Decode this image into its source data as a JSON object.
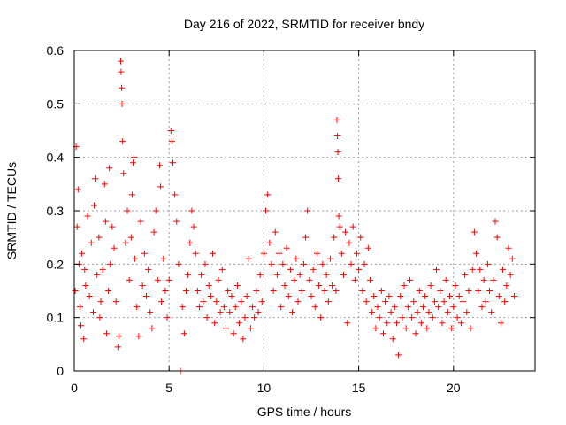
{
  "chart_data": {
    "type": "scatter",
    "title": "Day 216 of 2022, SRMTID for receiver bndy",
    "xlabel": "GPS time / hours",
    "ylabel": "SRMTID / TECUs",
    "xlim": [
      0,
      24.3
    ],
    "ylim": [
      0,
      0.6
    ],
    "x_ticks": [
      0,
      5,
      10,
      15,
      20
    ],
    "x_tick_labels": [
      "0",
      "5",
      "10",
      "15",
      "20"
    ],
    "y_ticks": [
      0,
      0.1,
      0.2,
      0.3,
      0.4,
      0.5,
      0.6
    ],
    "y_tick_labels": [
      "0",
      "0.1",
      "0.2",
      "0.3",
      "0.4",
      "0.5",
      "0.6"
    ],
    "grid": true,
    "marker": "plus",
    "color": "#ff0000",
    "series": [
      {
        "name": "SRMTID",
        "points": [
          [
            0.05,
            0.15
          ],
          [
            0.1,
            0.42
          ],
          [
            0.15,
            0.27
          ],
          [
            0.2,
            0.34
          ],
          [
            0.25,
            0.2
          ],
          [
            0.3,
            0.12
          ],
          [
            0.35,
            0.085
          ],
          [
            0.4,
            0.22
          ],
          [
            0.5,
            0.06
          ],
          [
            0.55,
            0.19
          ],
          [
            0.6,
            0.16
          ],
          [
            0.7,
            0.29
          ],
          [
            0.8,
            0.14
          ],
          [
            0.9,
            0.24
          ],
          [
            1.0,
            0.11
          ],
          [
            1.05,
            0.31
          ],
          [
            1.1,
            0.36
          ],
          [
            1.2,
            0.18
          ],
          [
            1.3,
            0.25
          ],
          [
            1.35,
            0.1
          ],
          [
            1.4,
            0.13
          ],
          [
            1.5,
            0.19
          ],
          [
            1.6,
            0.35
          ],
          [
            1.65,
            0.28
          ],
          [
            1.7,
            0.07
          ],
          [
            1.8,
            0.15
          ],
          [
            1.85,
            0.38
          ],
          [
            1.9,
            0.2
          ],
          [
            2.0,
            0.27
          ],
          [
            2.1,
            0.23
          ],
          [
            2.2,
            0.13
          ],
          [
            2.3,
            0.045
          ],
          [
            2.35,
            0.065
          ],
          [
            2.45,
            0.58
          ],
          [
            2.47,
            0.56
          ],
          [
            2.5,
            0.53
          ],
          [
            2.52,
            0.5
          ],
          [
            2.55,
            0.43
          ],
          [
            2.6,
            0.37
          ],
          [
            2.7,
            0.24
          ],
          [
            2.8,
            0.3
          ],
          [
            2.9,
            0.17
          ],
          [
            3.0,
            0.25
          ],
          [
            3.05,
            0.33
          ],
          [
            3.1,
            0.39
          ],
          [
            3.15,
            0.4
          ],
          [
            3.2,
            0.21
          ],
          [
            3.3,
            0.12
          ],
          [
            3.4,
            0.065
          ],
          [
            3.5,
            0.28
          ],
          [
            3.6,
            0.16
          ],
          [
            3.7,
            0.22
          ],
          [
            3.8,
            0.14
          ],
          [
            3.9,
            0.19
          ],
          [
            4.0,
            0.11
          ],
          [
            4.1,
            0.08
          ],
          [
            4.2,
            0.26
          ],
          [
            4.3,
            0.3
          ],
          [
            4.4,
            0.17
          ],
          [
            4.5,
            0.385
          ],
          [
            4.55,
            0.345
          ],
          [
            4.6,
            0.13
          ],
          [
            4.7,
            0.21
          ],
          [
            4.8,
            0.15
          ],
          [
            4.9,
            0.1
          ],
          [
            5.0,
            0.17
          ],
          [
            5.1,
            0.45
          ],
          [
            5.15,
            0.43
          ],
          [
            5.2,
            0.39
          ],
          [
            5.3,
            0.33
          ],
          [
            5.4,
            0.28
          ],
          [
            5.5,
            0.2
          ],
          [
            5.6,
            0.0
          ],
          [
            5.7,
            0.12
          ],
          [
            5.8,
            0.07
          ],
          [
            5.9,
            0.15
          ],
          [
            6.0,
            0.18
          ],
          [
            6.1,
            0.24
          ],
          [
            6.2,
            0.3
          ],
          [
            6.3,
            0.27
          ],
          [
            6.4,
            0.22
          ],
          [
            6.5,
            0.15
          ],
          [
            6.6,
            0.12
          ],
          [
            6.7,
            0.18
          ],
          [
            6.8,
            0.13
          ],
          [
            6.9,
            0.2
          ],
          [
            7.0,
            0.1
          ],
          [
            7.1,
            0.16
          ],
          [
            7.2,
            0.14
          ],
          [
            7.3,
            0.22
          ],
          [
            7.4,
            0.09
          ],
          [
            7.5,
            0.13
          ],
          [
            7.6,
            0.17
          ],
          [
            7.7,
            0.11
          ],
          [
            7.8,
            0.19
          ],
          [
            7.9,
            0.12
          ],
          [
            8.0,
            0.08
          ],
          [
            8.1,
            0.15
          ],
          [
            8.2,
            0.11
          ],
          [
            8.3,
            0.14
          ],
          [
            8.4,
            0.07
          ],
          [
            8.5,
            0.12
          ],
          [
            8.6,
            0.16
          ],
          [
            8.7,
            0.09
          ],
          [
            8.8,
            0.13
          ],
          [
            8.9,
            0.06
          ],
          [
            9.0,
            0.1
          ],
          [
            9.1,
            0.14
          ],
          [
            9.2,
            0.21
          ],
          [
            9.3,
            0.08
          ],
          [
            9.4,
            0.12
          ],
          [
            9.5,
            0.1
          ],
          [
            9.6,
            0.15
          ],
          [
            9.7,
            0.11
          ],
          [
            9.8,
            0.18
          ],
          [
            9.9,
            0.13
          ],
          [
            10.0,
            0.22
          ],
          [
            10.1,
            0.3
          ],
          [
            10.2,
            0.33
          ],
          [
            10.3,
            0.24
          ],
          [
            10.4,
            0.2
          ],
          [
            10.5,
            0.15
          ],
          [
            10.6,
            0.26
          ],
          [
            10.7,
            0.18
          ],
          [
            10.8,
            0.22
          ],
          [
            10.9,
            0.12
          ],
          [
            11.0,
            0.2
          ],
          [
            11.1,
            0.16
          ],
          [
            11.2,
            0.23
          ],
          [
            11.3,
            0.14
          ],
          [
            11.4,
            0.19
          ],
          [
            11.5,
            0.11
          ],
          [
            11.6,
            0.17
          ],
          [
            11.7,
            0.21
          ],
          [
            11.8,
            0.13
          ],
          [
            11.9,
            0.18
          ],
          [
            12.0,
            0.15
          ],
          [
            12.1,
            0.2
          ],
          [
            12.2,
            0.25
          ],
          [
            12.3,
            0.3
          ],
          [
            12.4,
            0.17
          ],
          [
            12.5,
            0.14
          ],
          [
            12.6,
            0.19
          ],
          [
            12.7,
            0.12
          ],
          [
            12.8,
            0.22
          ],
          [
            12.9,
            0.16
          ],
          [
            13.0,
            0.1
          ],
          [
            13.1,
            0.2
          ],
          [
            13.2,
            0.15
          ],
          [
            13.3,
            0.18
          ],
          [
            13.4,
            0.13
          ],
          [
            13.5,
            0.21
          ],
          [
            13.6,
            0.16
          ],
          [
            13.7,
            0.25
          ],
          [
            13.8,
            0.15
          ],
          [
            13.85,
            0.47
          ],
          [
            13.88,
            0.44
          ],
          [
            13.9,
            0.41
          ],
          [
            13.92,
            0.36
          ],
          [
            13.95,
            0.29
          ],
          [
            14.0,
            0.27
          ],
          [
            14.1,
            0.22
          ],
          [
            14.2,
            0.18
          ],
          [
            14.3,
            0.26
          ],
          [
            14.4,
            0.09
          ],
          [
            14.5,
            0.24
          ],
          [
            14.6,
            0.2
          ],
          [
            14.7,
            0.27
          ],
          [
            14.8,
            0.17
          ],
          [
            14.9,
            0.22
          ],
          [
            15.0,
            0.19
          ],
          [
            15.1,
            0.25
          ],
          [
            15.2,
            0.15
          ],
          [
            15.3,
            0.2
          ],
          [
            15.4,
            0.13
          ],
          [
            15.5,
            0.23
          ],
          [
            15.6,
            0.17
          ],
          [
            15.7,
            0.11
          ],
          [
            15.8,
            0.14
          ],
          [
            15.9,
            0.08
          ],
          [
            16.0,
            0.12
          ],
          [
            16.1,
            0.1
          ],
          [
            16.2,
            0.15
          ],
          [
            16.3,
            0.07
          ],
          [
            16.4,
            0.13
          ],
          [
            16.5,
            0.09
          ],
          [
            16.6,
            0.14
          ],
          [
            16.7,
            0.11
          ],
          [
            16.8,
            0.06
          ],
          [
            16.9,
            0.12
          ],
          [
            17.0,
            0.09
          ],
          [
            17.1,
            0.03
          ],
          [
            17.2,
            0.14
          ],
          [
            17.3,
            0.1
          ],
          [
            17.4,
            0.16
          ],
          [
            17.5,
            0.08
          ],
          [
            17.6,
            0.12
          ],
          [
            17.7,
            0.17
          ],
          [
            17.8,
            0.1
          ],
          [
            17.9,
            0.13
          ],
          [
            18.0,
            0.07
          ],
          [
            18.1,
            0.11
          ],
          [
            18.2,
            0.15
          ],
          [
            18.3,
            0.09
          ],
          [
            18.4,
            0.12
          ],
          [
            18.5,
            0.14
          ],
          [
            18.6,
            0.08
          ],
          [
            18.7,
            0.11
          ],
          [
            18.8,
            0.16
          ],
          [
            18.9,
            0.1
          ],
          [
            19.0,
            0.13
          ],
          [
            19.1,
            0.19
          ],
          [
            19.2,
            0.12
          ],
          [
            19.3,
            0.15
          ],
          [
            19.4,
            0.09
          ],
          [
            19.5,
            0.13
          ],
          [
            19.6,
            0.17
          ],
          [
            19.7,
            0.11
          ],
          [
            19.8,
            0.14
          ],
          [
            19.9,
            0.08
          ],
          [
            20.0,
            0.12
          ],
          [
            20.1,
            0.16
          ],
          [
            20.2,
            0.1
          ],
          [
            20.3,
            0.14
          ],
          [
            20.4,
            0.09
          ],
          [
            20.5,
            0.13
          ],
          [
            20.6,
            0.18
          ],
          [
            20.7,
            0.11
          ],
          [
            20.8,
            0.15
          ],
          [
            20.9,
            0.08
          ],
          [
            21.0,
            0.19
          ],
          [
            21.1,
            0.26
          ],
          [
            21.2,
            0.22
          ],
          [
            21.3,
            0.15
          ],
          [
            21.4,
            0.19
          ],
          [
            21.5,
            0.12
          ],
          [
            21.6,
            0.17
          ],
          [
            21.7,
            0.13
          ],
          [
            21.8,
            0.2
          ],
          [
            21.9,
            0.15
          ],
          [
            22.0,
            0.11
          ],
          [
            22.1,
            0.17
          ],
          [
            22.2,
            0.28
          ],
          [
            22.3,
            0.25
          ],
          [
            22.4,
            0.14
          ],
          [
            22.5,
            0.09
          ],
          [
            22.6,
            0.19
          ],
          [
            22.7,
            0.13
          ],
          [
            22.8,
            0.16
          ],
          [
            22.9,
            0.23
          ],
          [
            23.0,
            0.18
          ],
          [
            23.1,
            0.21
          ],
          [
            23.2,
            0.14
          ]
        ]
      }
    ]
  }
}
